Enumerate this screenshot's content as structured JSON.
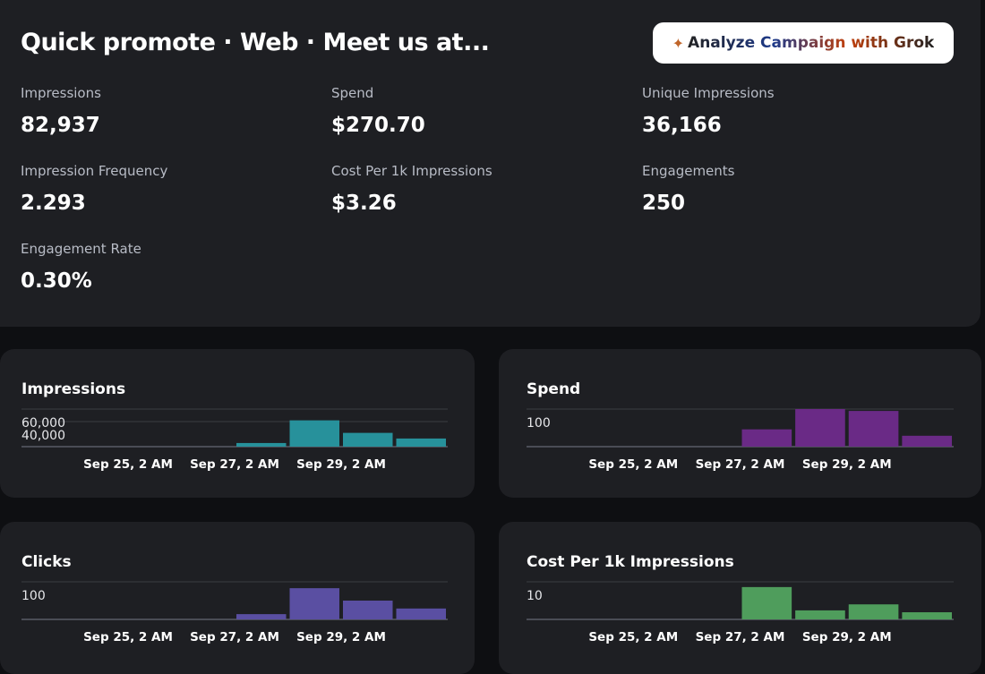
{
  "header": {
    "title": "Quick promote · Web · Meet us at...",
    "button": "Analyze Campaign with Grok"
  },
  "metrics": [
    {
      "label": "Impressions",
      "value": "82,937"
    },
    {
      "label": "Spend",
      "value": "$270.70"
    },
    {
      "label": "Unique Impressions",
      "value": "36,166"
    },
    {
      "label": "Impression Frequency",
      "value": "2.293"
    },
    {
      "label": "Cost Per 1k Impressions",
      "value": "$3.26"
    },
    {
      "label": "Engagements",
      "value": "250"
    },
    {
      "label": "Engagement Rate",
      "value": "0.30%"
    }
  ],
  "charts": [
    {
      "type": "bar",
      "title": "Impressions",
      "color": "#27919b",
      "categories": [
        null,
        "Sep 25, 2 AM",
        null,
        "Sep 27, 2 AM",
        null,
        "Sep 29, 2 AM",
        null,
        null
      ],
      "values": [
        0,
        0,
        0,
        0,
        5800,
        42000,
        22000,
        13000
      ],
      "ylim": [
        0,
        60000
      ],
      "yticks": [
        {
          "value": 40000,
          "label": "40,000"
        },
        {
          "value": 60000,
          "label": "60,000"
        }
      ]
    },
    {
      "type": "bar",
      "title": "Spend",
      "color": "#6a2a86",
      "categories": [
        null,
        "Sep 25, 2 AM",
        null,
        "Sep 27, 2 AM",
        null,
        "Sep 29, 2 AM",
        null,
        null
      ],
      "values": [
        0,
        0,
        0,
        0,
        46,
        100,
        95,
        29
      ],
      "ylim": [
        0,
        100
      ],
      "yticks": [
        100
      ]
    },
    {
      "type": "bar",
      "title": "Clicks",
      "color": "#5a4fa2",
      "categories": [
        null,
        "Sep 25, 2 AM",
        null,
        "Sep 27, 2 AM",
        null,
        "Sep 29, 2 AM",
        null,
        null
      ],
      "values": [
        0,
        0,
        0,
        0,
        14,
        83,
        50,
        29
      ],
      "ylim": [
        0,
        100
      ],
      "yticks": [
        100
      ]
    },
    {
      "type": "bar",
      "title": "Cost Per 1k Impressions",
      "color": "#4f9d5c",
      "categories": [
        null,
        "Sep 25, 2 AM",
        null,
        "Sep 27, 2 AM",
        null,
        "Sep 29, 2 AM",
        null,
        null
      ],
      "values": [
        0,
        0,
        0,
        0,
        8.6,
        2.4,
        4.0,
        1.9
      ],
      "ylim": [
        0,
        10
      ],
      "yticks": [
        10
      ]
    }
  ]
}
